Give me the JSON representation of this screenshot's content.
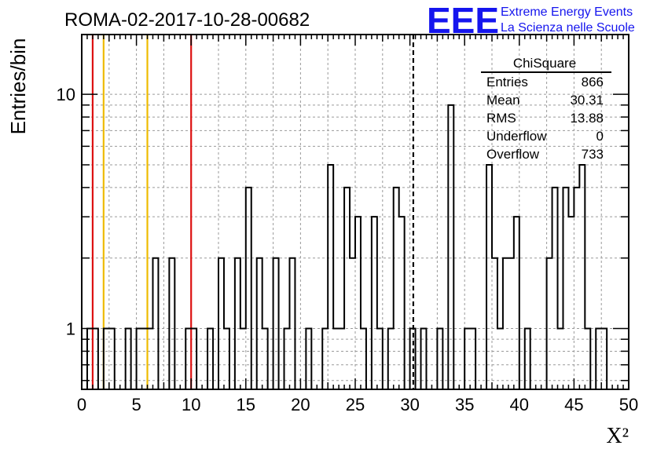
{
  "chart_data": {
    "type": "histogram",
    "title": "ROMA-02-2017-10-28-00682",
    "xlabel": "X²",
    "ylabel": "Entries/bin",
    "xlim": [
      0,
      50
    ],
    "ylim": [
      0.55,
      18
    ],
    "y_scale": "log",
    "grid": true,
    "bin_width": 0.5,
    "x_ticks": [
      "0",
      "5",
      "10",
      "15",
      "20",
      "25",
      "30",
      "35",
      "40",
      "45",
      "50"
    ],
    "y_ticks": [
      "1",
      "10"
    ],
    "bins": [
      {
        "x": 0.5,
        "y": 0
      },
      {
        "x": 1.0,
        "y": 1
      },
      {
        "x": 1.5,
        "y": 1
      },
      {
        "x": 2.0,
        "y": 0
      },
      {
        "x": 2.5,
        "y": 1
      },
      {
        "x": 3.0,
        "y": 1
      },
      {
        "x": 3.5,
        "y": 0
      },
      {
        "x": 4.0,
        "y": 0
      },
      {
        "x": 4.5,
        "y": 1
      },
      {
        "x": 5.0,
        "y": 0
      },
      {
        "x": 5.5,
        "y": 1
      },
      {
        "x": 6.0,
        "y": 1
      },
      {
        "x": 6.5,
        "y": 1
      },
      {
        "x": 7.0,
        "y": 2
      },
      {
        "x": 7.5,
        "y": 0
      },
      {
        "x": 8.0,
        "y": 0
      },
      {
        "x": 8.5,
        "y": 2
      },
      {
        "x": 9.0,
        "y": 0
      },
      {
        "x": 9.5,
        "y": 0
      },
      {
        "x": 10.0,
        "y": 1
      },
      {
        "x": 10.5,
        "y": 1
      },
      {
        "x": 11.0,
        "y": 0
      },
      {
        "x": 11.5,
        "y": 0
      },
      {
        "x": 12.0,
        "y": 1
      },
      {
        "x": 12.5,
        "y": 0
      },
      {
        "x": 13.0,
        "y": 2
      },
      {
        "x": 13.5,
        "y": 1
      },
      {
        "x": 14.0,
        "y": 0
      },
      {
        "x": 14.5,
        "y": 2
      },
      {
        "x": 15.0,
        "y": 1
      },
      {
        "x": 15.5,
        "y": 4
      },
      {
        "x": 16.0,
        "y": 0
      },
      {
        "x": 16.5,
        "y": 2
      },
      {
        "x": 17.0,
        "y": 1
      },
      {
        "x": 17.5,
        "y": 0
      },
      {
        "x": 18.0,
        "y": 2
      },
      {
        "x": 18.5,
        "y": 0
      },
      {
        "x": 19.0,
        "y": 1
      },
      {
        "x": 19.5,
        "y": 2
      },
      {
        "x": 20.0,
        "y": 0
      },
      {
        "x": 20.5,
        "y": 0
      },
      {
        "x": 21.0,
        "y": 1
      },
      {
        "x": 21.5,
        "y": 0
      },
      {
        "x": 22.0,
        "y": 0
      },
      {
        "x": 22.5,
        "y": 1
      },
      {
        "x": 23.0,
        "y": 5
      },
      {
        "x": 23.5,
        "y": 1
      },
      {
        "x": 24.0,
        "y": 1
      },
      {
        "x": 24.5,
        "y": 4
      },
      {
        "x": 25.0,
        "y": 2
      },
      {
        "x": 25.5,
        "y": 3
      },
      {
        "x": 26.0,
        "y": 1
      },
      {
        "x": 26.5,
        "y": 0
      },
      {
        "x": 27.0,
        "y": 3
      },
      {
        "x": 27.5,
        "y": 1
      },
      {
        "x": 28.0,
        "y": 0
      },
      {
        "x": 28.5,
        "y": 1
      },
      {
        "x": 29.0,
        "y": 4
      },
      {
        "x": 29.5,
        "y": 3
      },
      {
        "x": 30.0,
        "y": 0
      },
      {
        "x": 30.5,
        "y": 1
      },
      {
        "x": 31.0,
        "y": 0
      },
      {
        "x": 31.5,
        "y": 1
      },
      {
        "x": 32.0,
        "y": 0
      },
      {
        "x": 32.5,
        "y": 0
      },
      {
        "x": 33.0,
        "y": 1
      },
      {
        "x": 33.5,
        "y": 0
      },
      {
        "x": 34.0,
        "y": 9
      },
      {
        "x": 34.5,
        "y": 0
      },
      {
        "x": 35.0,
        "y": 0
      },
      {
        "x": 35.5,
        "y": 1
      },
      {
        "x": 36.0,
        "y": 1
      },
      {
        "x": 36.5,
        "y": 0
      },
      {
        "x": 37.0,
        "y": 0
      },
      {
        "x": 37.5,
        "y": 5
      },
      {
        "x": 38.0,
        "y": 2
      },
      {
        "x": 38.5,
        "y": 1
      },
      {
        "x": 39.0,
        "y": 2
      },
      {
        "x": 39.5,
        "y": 2
      },
      {
        "x": 40.0,
        "y": 3
      },
      {
        "x": 40.5,
        "y": 0
      },
      {
        "x": 41.0,
        "y": 1
      },
      {
        "x": 41.5,
        "y": 0
      },
      {
        "x": 42.0,
        "y": 0
      },
      {
        "x": 42.5,
        "y": 0
      },
      {
        "x": 43.0,
        "y": 2
      },
      {
        "x": 43.5,
        "y": 4
      },
      {
        "x": 44.0,
        "y": 1
      },
      {
        "x": 44.5,
        "y": 4
      },
      {
        "x": 45.0,
        "y": 3
      },
      {
        "x": 45.5,
        "y": 4
      },
      {
        "x": 46.0,
        "y": 5
      },
      {
        "x": 46.5,
        "y": 1
      },
      {
        "x": 47.0,
        "y": 0
      },
      {
        "x": 47.5,
        "y": 1
      },
      {
        "x": 48.0,
        "y": 1
      },
      {
        "x": 48.5,
        "y": 0
      },
      {
        "x": 49.0,
        "y": 0
      },
      {
        "x": 49.5,
        "y": 0
      },
      {
        "x": 50.0,
        "y": 0
      }
    ],
    "reference_lines": [
      {
        "x": 1,
        "color": "#dd1111",
        "style": "solid"
      },
      {
        "x": 2,
        "color": "#eebb00",
        "style": "solid"
      },
      {
        "x": 6,
        "color": "#eebb00",
        "style": "solid"
      },
      {
        "x": 10,
        "color": "#dd1111",
        "style": "solid"
      },
      {
        "x": 30.31,
        "color": "#000000",
        "style": "dashed"
      }
    ],
    "stats_box": {
      "title": "ChiSquare",
      "rows": [
        {
          "label": "Entries",
          "value": "866"
        },
        {
          "label": "Mean",
          "value": "30.31"
        },
        {
          "label": "RMS",
          "value": "13.88"
        },
        {
          "label": "Underflow",
          "value": "0"
        },
        {
          "label": "Overflow",
          "value": "733"
        }
      ]
    }
  },
  "logo": {
    "text": "EEE",
    "line1": "Extreme Energy Events",
    "line2": "La Scienza nelle Scuole",
    "color": "#1515ee"
  },
  "colors": {
    "histogram_line": "#000000",
    "grid": "#9a9a9a",
    "red_line": "#dd1111",
    "yellow_line": "#eebb00"
  }
}
